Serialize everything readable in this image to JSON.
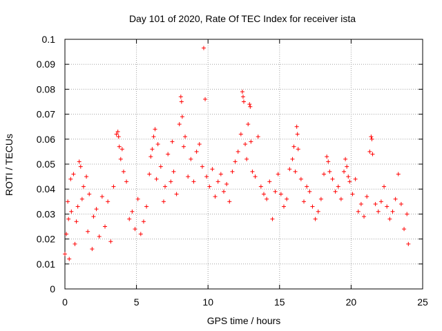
{
  "chart_data": {
    "type": "scatter",
    "title": "Day 101 of 2020, Rate Of TEC Index for receiver ista",
    "xlabel": "GPS time / hours",
    "ylabel": "ROTI / TECUs",
    "xlim": [
      0,
      25
    ],
    "ylim": [
      0,
      0.1
    ],
    "grid": true,
    "marker": "+",
    "color": "#ff0000",
    "x_ticks": [
      {
        "value": 0,
        "label": "0"
      },
      {
        "value": 5,
        "label": "5"
      },
      {
        "value": 10,
        "label": "10"
      },
      {
        "value": 15,
        "label": "15"
      },
      {
        "value": 20,
        "label": "20"
      },
      {
        "value": 25,
        "label": "25"
      }
    ],
    "y_ticks": [
      {
        "value": 0,
        "label": "0"
      },
      {
        "value": 0.01,
        "label": "0.01"
      },
      {
        "value": 0.02,
        "label": "0.02"
      },
      {
        "value": 0.03,
        "label": "0.03"
      },
      {
        "value": 0.04,
        "label": "0.04"
      },
      {
        "value": 0.05,
        "label": "0.05"
      },
      {
        "value": 0.06,
        "label": "0.06"
      },
      {
        "value": 0.07,
        "label": "0.07"
      },
      {
        "value": 0.08,
        "label": "0.08"
      },
      {
        "value": 0.09,
        "label": "0.09"
      },
      {
        "value": 0.1,
        "label": "0.1"
      }
    ],
    "series": [
      {
        "name": "ROTI",
        "points": [
          [
            0.0,
            0.014
          ],
          [
            0.1,
            0.022
          ],
          [
            0.2,
            0.035
          ],
          [
            0.25,
            0.028
          ],
          [
            0.3,
            0.012
          ],
          [
            0.4,
            0.044
          ],
          [
            0.45,
            0.031
          ],
          [
            0.6,
            0.046
          ],
          [
            0.7,
            0.018
          ],
          [
            0.8,
            0.027
          ],
          [
            0.9,
            0.033
          ],
          [
            1.0,
            0.051
          ],
          [
            1.1,
            0.049
          ],
          [
            1.2,
            0.036
          ],
          [
            1.3,
            0.041
          ],
          [
            1.5,
            0.045
          ],
          [
            1.6,
            0.023
          ],
          [
            1.7,
            0.038
          ],
          [
            1.9,
            0.016
          ],
          [
            2.0,
            0.029
          ],
          [
            2.2,
            0.032
          ],
          [
            2.4,
            0.021
          ],
          [
            2.6,
            0.037
          ],
          [
            2.8,
            0.025
          ],
          [
            3.0,
            0.035
          ],
          [
            3.2,
            0.019
          ],
          [
            3.4,
            0.041
          ],
          [
            3.6,
            0.062
          ],
          [
            3.7,
            0.063
          ],
          [
            3.75,
            0.061
          ],
          [
            3.8,
            0.057
          ],
          [
            3.9,
            0.052
          ],
          [
            4.0,
            0.056
          ],
          [
            4.1,
            0.047
          ],
          [
            4.3,
            0.043
          ],
          [
            4.5,
            0.028
          ],
          [
            4.7,
            0.031
          ],
          [
            4.9,
            0.024
          ],
          [
            5.1,
            0.036
          ],
          [
            5.3,
            0.022
          ],
          [
            5.5,
            0.027
          ],
          [
            5.7,
            0.033
          ],
          [
            5.9,
            0.046
          ],
          [
            6.0,
            0.053
          ],
          [
            6.1,
            0.056
          ],
          [
            6.2,
            0.061
          ],
          [
            6.3,
            0.064
          ],
          [
            6.4,
            0.044
          ],
          [
            6.5,
            0.058
          ],
          [
            6.7,
            0.049
          ],
          [
            6.9,
            0.035
          ],
          [
            7.0,
            0.041
          ],
          [
            7.2,
            0.054
          ],
          [
            7.4,
            0.043
          ],
          [
            7.5,
            0.059
          ],
          [
            7.6,
            0.047
          ],
          [
            7.8,
            0.038
          ],
          [
            8.0,
            0.066
          ],
          [
            8.1,
            0.077
          ],
          [
            8.15,
            0.075
          ],
          [
            8.2,
            0.069
          ],
          [
            8.3,
            0.057
          ],
          [
            8.4,
            0.061
          ],
          [
            8.6,
            0.045
          ],
          [
            8.8,
            0.052
          ],
          [
            9.0,
            0.043
          ],
          [
            9.2,
            0.055
          ],
          [
            9.4,
            0.058
          ],
          [
            9.6,
            0.049
          ],
          [
            9.7,
            0.0965
          ],
          [
            9.8,
            0.076
          ],
          [
            9.9,
            0.045
          ],
          [
            10.1,
            0.041
          ],
          [
            10.3,
            0.048
          ],
          [
            10.5,
            0.037
          ],
          [
            10.7,
            0.043
          ],
          [
            10.9,
            0.046
          ],
          [
            11.1,
            0.039
          ],
          [
            11.3,
            0.042
          ],
          [
            11.5,
            0.035
          ],
          [
            11.7,
            0.047
          ],
          [
            11.9,
            0.051
          ],
          [
            12.1,
            0.055
          ],
          [
            12.3,
            0.062
          ],
          [
            12.4,
            0.079
          ],
          [
            12.45,
            0.077
          ],
          [
            12.5,
            0.075
          ],
          [
            12.6,
            0.058
          ],
          [
            12.7,
            0.052
          ],
          [
            12.8,
            0.066
          ],
          [
            12.9,
            0.074
          ],
          [
            12.95,
            0.073
          ],
          [
            13.0,
            0.059
          ],
          [
            13.1,
            0.047
          ],
          [
            13.3,
            0.045
          ],
          [
            13.5,
            0.061
          ],
          [
            13.7,
            0.041
          ],
          [
            13.9,
            0.038
          ],
          [
            14.1,
            0.036
          ],
          [
            14.3,
            0.043
          ],
          [
            14.5,
            0.028
          ],
          [
            14.7,
            0.039
          ],
          [
            14.9,
            0.046
          ],
          [
            15.1,
            0.038
          ],
          [
            15.3,
            0.033
          ],
          [
            15.5,
            0.036
          ],
          [
            15.7,
            0.048
          ],
          [
            15.9,
            0.052
          ],
          [
            16.0,
            0.057
          ],
          [
            16.1,
            0.047
          ],
          [
            16.2,
            0.065
          ],
          [
            16.25,
            0.062
          ],
          [
            16.3,
            0.056
          ],
          [
            16.5,
            0.044
          ],
          [
            16.7,
            0.035
          ],
          [
            16.9,
            0.041
          ],
          [
            17.1,
            0.039
          ],
          [
            17.3,
            0.033
          ],
          [
            17.5,
            0.028
          ],
          [
            17.7,
            0.031
          ],
          [
            17.9,
            0.036
          ],
          [
            18.1,
            0.046
          ],
          [
            18.3,
            0.053
          ],
          [
            18.4,
            0.051
          ],
          [
            18.5,
            0.047
          ],
          [
            18.7,
            0.044
          ],
          [
            18.9,
            0.039
          ],
          [
            19.1,
            0.041
          ],
          [
            19.3,
            0.036
          ],
          [
            19.5,
            0.047
          ],
          [
            19.6,
            0.052
          ],
          [
            19.7,
            0.049
          ],
          [
            19.8,
            0.045
          ],
          [
            19.9,
            0.043
          ],
          [
            20.1,
            0.038
          ],
          [
            20.3,
            0.044
          ],
          [
            20.5,
            0.031
          ],
          [
            20.7,
            0.034
          ],
          [
            20.9,
            0.029
          ],
          [
            21.1,
            0.037
          ],
          [
            21.3,
            0.055
          ],
          [
            21.4,
            0.061
          ],
          [
            21.45,
            0.06
          ],
          [
            21.5,
            0.054
          ],
          [
            21.7,
            0.034
          ],
          [
            21.9,
            0.031
          ],
          [
            22.1,
            0.035
          ],
          [
            22.3,
            0.041
          ],
          [
            22.5,
            0.033
          ],
          [
            22.7,
            0.028
          ],
          [
            22.9,
            0.031
          ],
          [
            23.1,
            0.036
          ],
          [
            23.3,
            0.046
          ],
          [
            23.5,
            0.034
          ],
          [
            23.7,
            0.024
          ],
          [
            23.9,
            0.03
          ],
          [
            24.0,
            0.018
          ]
        ]
      }
    ]
  }
}
